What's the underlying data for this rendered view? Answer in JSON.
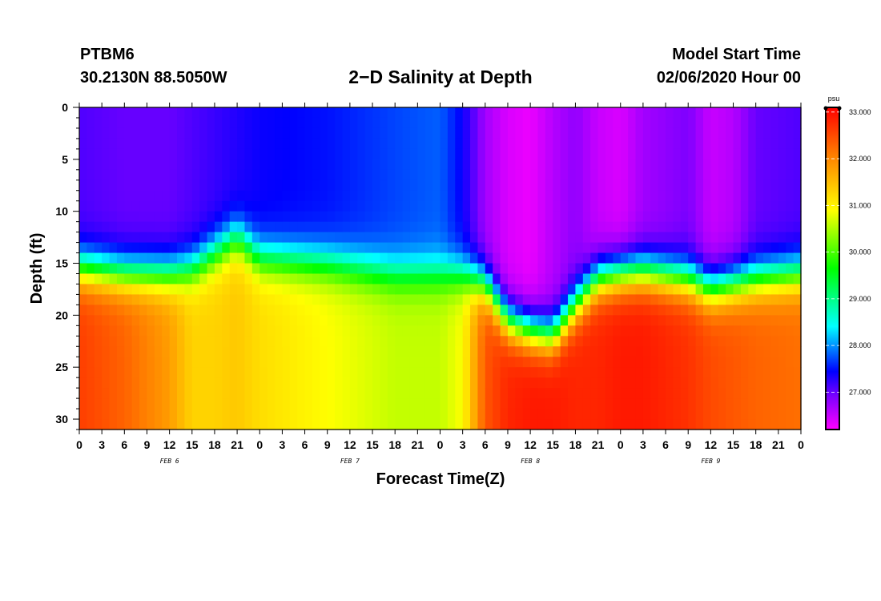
{
  "header": {
    "station_id": "PTBM6",
    "station_coords": "30.2130N 88.5050W",
    "title": "2−D Salinity at Depth",
    "model_label": "Model Start Time",
    "model_start": "02/06/2020 Hour 00"
  },
  "chart_data": {
    "type": "heatmap",
    "title": "2−D Salinity at Depth",
    "xlabel": "Forecast Time(Z)",
    "ylabel": "Depth (ft)",
    "x_hours": [
      0,
      3,
      6,
      9,
      12,
      15,
      18,
      21,
      24,
      27,
      30,
      33,
      36,
      39,
      42,
      45,
      48,
      51,
      54,
      57,
      60,
      63,
      66,
      69,
      72,
      75,
      78,
      81,
      84,
      87,
      90,
      93,
      96
    ],
    "x_tick_labels": [
      "0",
      "3",
      "6",
      "9",
      "12",
      "15",
      "18",
      "21",
      "0",
      "3",
      "6",
      "9",
      "12",
      "15",
      "18",
      "21",
      "0",
      "3",
      "6",
      "9",
      "12",
      "15",
      "18",
      "21",
      "0",
      "3",
      "6",
      "9",
      "12",
      "15",
      "18",
      "21",
      "0"
    ],
    "xlim": [
      0,
      96
    ],
    "day_labels": [
      {
        "label": "FEB 6",
        "hour": 12
      },
      {
        "label": "FEB 7",
        "hour": 36
      },
      {
        "label": "FEB 8",
        "hour": 60
      },
      {
        "label": "FEB 9",
        "hour": 84
      }
    ],
    "y_ticks": [
      0,
      5,
      10,
      15,
      20,
      25,
      30
    ],
    "ylim": [
      0,
      31
    ],
    "y_inverted": true,
    "colorbar": {
      "unit": "psu",
      "range": [
        26.2,
        33.1
      ],
      "ticks": [
        "33.000",
        "32.000",
        "31.000",
        "30.000",
        "29.000",
        "28.000",
        "27.000"
      ],
      "tick_values": [
        33,
        32,
        31,
        30,
        29,
        28,
        27
      ]
    },
    "profile_key_hours": [
      0,
      6,
      12,
      15,
      18,
      21,
      24,
      33,
      42,
      48,
      51,
      54,
      57,
      60,
      63,
      66,
      69,
      72,
      75,
      81,
      84,
      87,
      90,
      96
    ],
    "profile_interface_depth_ft": [
      15.5,
      16,
      16,
      15.5,
      14,
      12.5,
      14.5,
      15,
      16,
      16,
      16,
      17,
      20.5,
      21.5,
      22,
      19,
      16.5,
      16,
      15.8,
      16.5,
      17.5,
      17,
      16.5,
      16
    ],
    "profile_surface_salinity_psu": [
      27.1,
      27.0,
      27.0,
      27.1,
      27.2,
      27.3,
      27.4,
      27.5,
      27.7,
      27.8,
      27.4,
      26.7,
      26.4,
      26.3,
      26.6,
      26.8,
      26.5,
      26.4,
      26.7,
      26.9,
      26.5,
      26.6,
      27.0,
      27.1
    ],
    "profile_bottom_salinity_psu": [
      32.6,
      32.3,
      31.8,
      31.3,
      31.3,
      31.4,
      31.2,
      30.9,
      30.6,
      30.6,
      30.9,
      32.4,
      32.8,
      32.9,
      32.9,
      32.8,
      32.8,
      32.9,
      32.9,
      32.7,
      32.5,
      32.4,
      32.3,
      32.2
    ]
  }
}
